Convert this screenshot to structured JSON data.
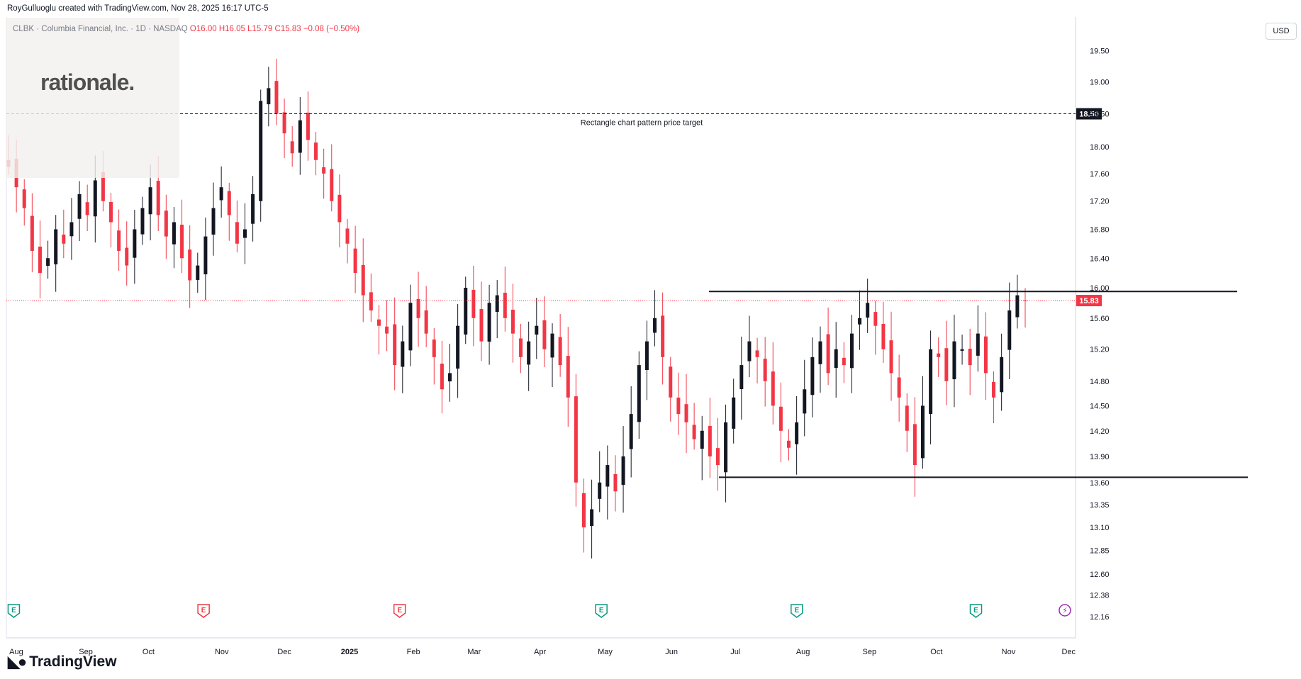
{
  "header": {
    "attribution": "RoyGulluoglu created with TradingView.com, Nov 28, 2025 16:17 UTC-5"
  },
  "legend": {
    "symbol": "CLBK · Columbia Financial, Inc. · 1D · NASDAQ",
    "open": "O16.00",
    "high": "H16.05",
    "low": "L15.79",
    "close": "C15.83",
    "change": "−0.08 (−0.50%)"
  },
  "watermark": {
    "logo_text": "rationale."
  },
  "currency": "USD",
  "brand": {
    "name": "TradingView",
    "icon": "tradingview-logo-icon"
  },
  "colors": {
    "up": "#131722",
    "down": "#f23645",
    "grid": "#f0f3fa",
    "accent": "#f23645",
    "target_badge": "#131722"
  },
  "chart_data": {
    "type": "candlestick",
    "ylim": [
      12.16,
      19.75
    ],
    "y_ticks": [
      "19.50",
      "19.00",
      "18.50",
      "18.00",
      "17.60",
      "17.20",
      "16.80",
      "16.40",
      "16.00",
      "15.60",
      "15.20",
      "14.80",
      "14.50",
      "14.20",
      "13.90",
      "13.60",
      "13.35",
      "13.10",
      "12.85",
      "12.60",
      "12.38",
      "12.16"
    ],
    "x_ticks": [
      "Aug",
      "Sep",
      "Oct",
      "Nov",
      "Dec",
      "2025",
      "Feb",
      "Mar",
      "Apr",
      "May",
      "Jun",
      "Jul",
      "Aug",
      "Sep",
      "Oct",
      "Nov",
      "Dec"
    ],
    "current_price": {
      "value": 15.83,
      "label": "15.83"
    },
    "price_target": {
      "value": 18.5,
      "label": "18.50",
      "annotation": "Rectangle chart pattern price target"
    },
    "rectangle": {
      "top": 15.95,
      "bottom": 13.66
    },
    "events": [
      {
        "month": "Aug",
        "icon": "earnings-icon",
        "color": "green",
        "letter": "E"
      },
      {
        "month": "Nov",
        "icon": "earnings-icon",
        "color": "red",
        "letter": "E"
      },
      {
        "month": "Feb",
        "icon": "earnings-icon",
        "color": "red",
        "letter": "E"
      },
      {
        "month": "May",
        "icon": "earnings-icon",
        "color": "green",
        "letter": "E"
      },
      {
        "month": "Aug",
        "icon": "earnings-icon",
        "color": "green",
        "letter": "E"
      },
      {
        "month": "Oct",
        "icon": "earnings-icon",
        "color": "green",
        "letter": "E"
      },
      {
        "month": "Dec",
        "icon": "lightning-icon",
        "color": "purple",
        "letter": ""
      }
    ],
    "close_series": [
      17.7,
      17.4,
      17.1,
      16.5,
      16.2,
      16.4,
      16.8,
      16.6,
      16.9,
      17.3,
      17.0,
      17.5,
      17.2,
      16.9,
      16.5,
      16.3,
      16.8,
      17.1,
      17.4,
      17.0,
      16.7,
      16.9,
      16.4,
      16.1,
      16.3,
      16.7,
      17.1,
      17.4,
      17.0,
      16.6,
      16.8,
      17.3,
      18.7,
      18.9,
      18.5,
      18.2,
      17.9,
      18.4,
      18.1,
      17.8,
      17.6,
      17.2,
      16.9,
      16.6,
      16.2,
      15.9,
      15.7,
      15.5,
      15.4,
      15.0,
      15.3,
      15.8,
      15.6,
      15.4,
      15.1,
      14.7,
      14.9,
      15.5,
      16.0,
      15.6,
      15.3,
      15.8,
      15.9,
      15.6,
      15.4,
      15.1,
      15.3,
      15.5,
      15.2,
      15.4,
      15.0,
      14.6,
      13.6,
      13.1,
      13.3,
      13.6,
      13.8,
      13.5,
      13.9,
      14.4,
      15.0,
      15.3,
      15.6,
      15.1,
      14.6,
      14.4,
      14.3,
      14.1,
      14.2,
      13.9,
      13.8,
      14.3,
      14.6,
      15.0,
      15.3,
      15.1,
      14.8,
      14.5,
      14.2,
      14.0,
      14.3,
      14.7,
      15.1,
      15.3,
      14.9,
      15.2,
      15.0,
      15.4,
      15.6,
      15.8,
      15.5,
      15.2,
      14.9,
      14.6,
      14.2,
      13.8,
      14.5,
      15.2,
      15.1,
      14.8,
      15.3,
      15.2,
      15.0,
      15.4,
      14.9,
      14.6,
      15.1,
      15.7,
      15.9,
      15.83
    ]
  }
}
